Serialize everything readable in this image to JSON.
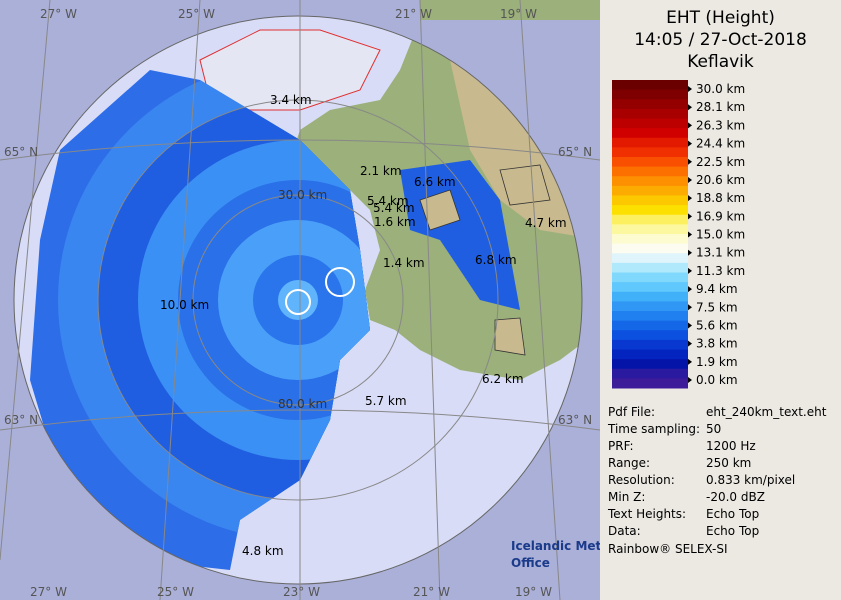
{
  "header": {
    "title": "EHT (Height)",
    "time": "14:05 / 27-Oct-2018",
    "site": "Keflavik"
  },
  "colorbar": {
    "labels": [
      "30.0 km",
      "28.1 km",
      "26.3 km",
      "24.4 km",
      "22.5 km",
      "20.6 km",
      "18.8 km",
      "16.9 km",
      "15.0 km",
      "13.1 km",
      "11.3 km",
      "9.4 km",
      "7.5 km",
      "5.6 km",
      "3.8 km",
      "1.9 km",
      "0.0 km"
    ],
    "colors": [
      "#6a0000",
      "#7e0000",
      "#940000",
      "#a80000",
      "#bc0000",
      "#d00000",
      "#e41a00",
      "#f03000",
      "#f85000",
      "#fc7000",
      "#fc9000",
      "#fcac00",
      "#fcc800",
      "#fce000",
      "#fcf060",
      "#fcf8a0",
      "#fcfcd0",
      "#fcfcf0",
      "#e0f4fc",
      "#b0e8fc",
      "#80d8fc",
      "#60c8fc",
      "#40b0f8",
      "#3098f4",
      "#2080f0",
      "#1468e8",
      "#0c50e0",
      "#0838d0",
      "#0424c0",
      "#0414a8",
      "#2a1aa0",
      "#3c1c98"
    ]
  },
  "info": {
    "rows": [
      [
        "Pdf File:",
        "eht_240km_text.eht"
      ],
      [
        "Time sampling:",
        "50"
      ],
      [
        "PRF:",
        "1200 Hz"
      ],
      [
        "Range:",
        "250 km"
      ],
      [
        "Resolution:",
        "0.833 km/pixel"
      ],
      [
        "Min Z:",
        "-20.0 dBZ"
      ],
      [
        "Text Heights:",
        "Echo Top"
      ],
      [
        "Data:",
        "Echo Top"
      ]
    ],
    "footer": "Rainbow® SELEX-SI"
  },
  "map": {
    "lon_top": [
      "27° W",
      "25° W",
      "21° W",
      "19° W"
    ],
    "lon_bottom": [
      "27° W",
      "25° W",
      "23° W",
      "21° W",
      "19° W"
    ],
    "lat_left": [
      "65° N",
      "63° N"
    ],
    "lat_right": [
      "65° N",
      "63° N"
    ],
    "ring_labels": [
      "30.0 km",
      "80.0 km"
    ],
    "heights": [
      "3.4 km",
      "2.1 km",
      "6.6 km",
      "5.4 km",
      "5.4 km",
      "1.6 km",
      "4.7 km",
      "1.4 km",
      "6.8 km",
      "10.0 km",
      "6.2 km",
      "5.7 km",
      "4.8 km"
    ],
    "logo": [
      "Icelandic Met",
      "Office"
    ]
  }
}
